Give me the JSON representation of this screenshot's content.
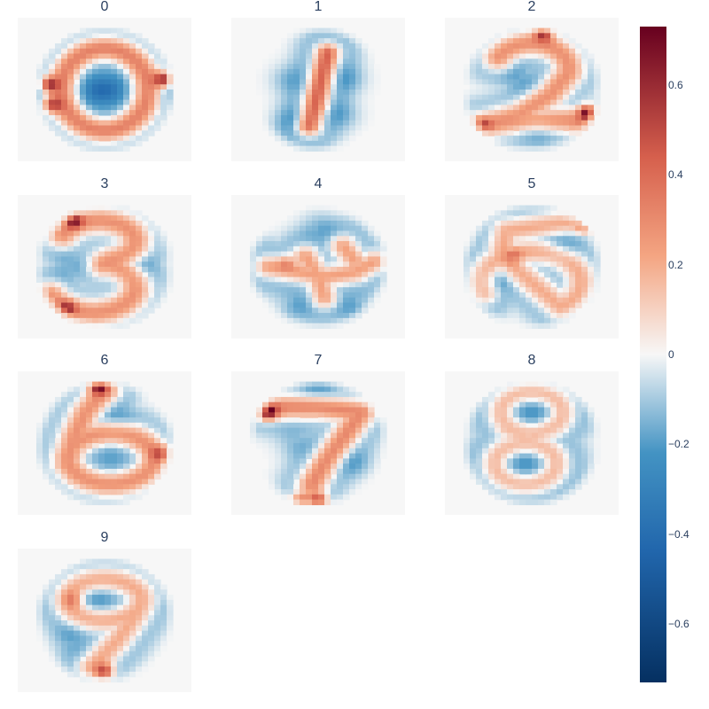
{
  "chart_data": {
    "type": "heatmap",
    "title": "",
    "colorscale": "RdBu (reversed)",
    "colors": {
      "min": "#053061",
      "low": "#4393c3",
      "mid": "#f7f7f7",
      "high": "#d6604d",
      "max": "#67001f",
      "background": "#f7f7f7",
      "text": "#2a3f5f"
    },
    "zrange": [
      -0.73,
      0.73
    ],
    "colorbar": {
      "tickvals": [
        0.6,
        0.4,
        0.2,
        0,
        -0.2,
        -0.4,
        -0.6
      ],
      "ticktext": [
        "0.6",
        "0.4",
        "0.2",
        "0",
        "−0.2",
        "−0.4",
        "−0.6"
      ]
    },
    "panels": [
      {
        "title": "0",
        "digit": 0
      },
      {
        "title": "1",
        "digit": 1
      },
      {
        "title": "2",
        "digit": 2
      },
      {
        "title": "3",
        "digit": 3
      },
      {
        "title": "4",
        "digit": 4
      },
      {
        "title": "5",
        "digit": 5
      },
      {
        "title": "6",
        "digit": 6
      },
      {
        "title": "7",
        "digit": 7
      },
      {
        "title": "8",
        "digit": 8
      },
      {
        "title": "9",
        "digit": 9
      }
    ]
  }
}
